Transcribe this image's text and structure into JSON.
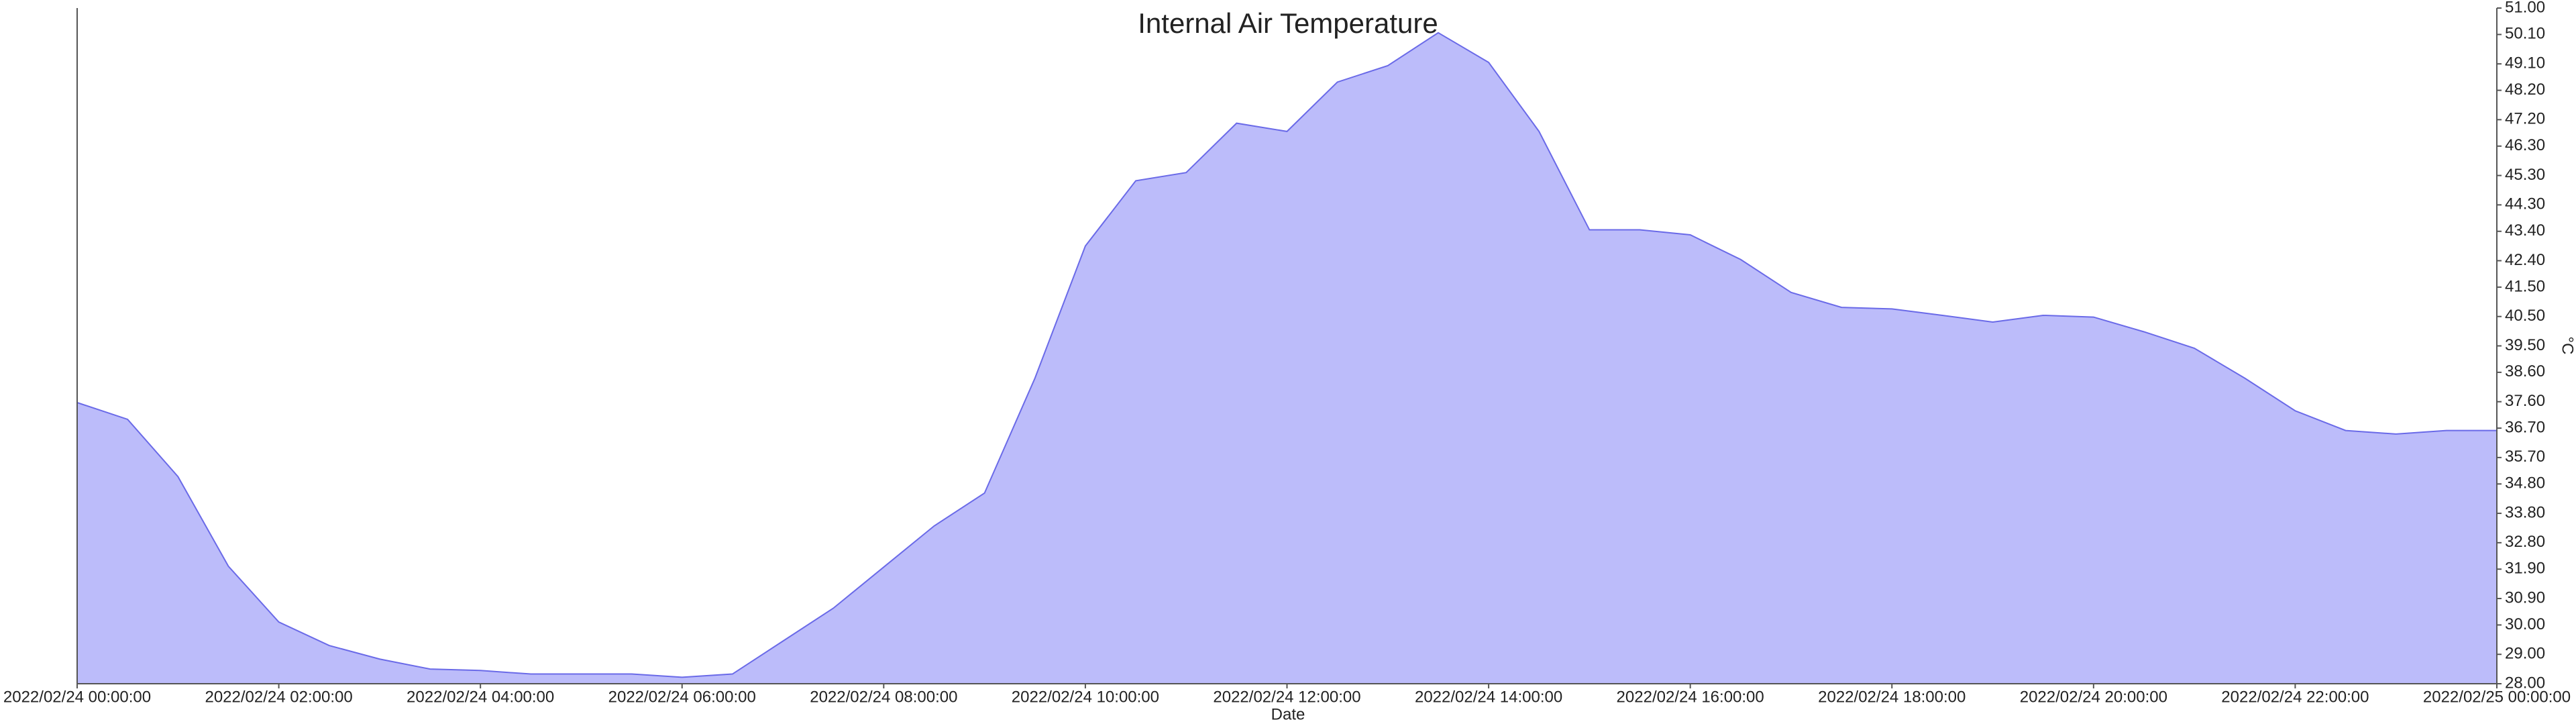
{
  "chart_data": {
    "type": "area",
    "title": "Internal Air Temperature",
    "x_label": "Date",
    "y_label": "°C",
    "x": [
      "2022/02/24 00:00:00",
      "2022/02/24 00:30:00",
      "2022/02/24 01:00:00",
      "2022/02/24 01:30:00",
      "2022/02/24 02:00:00",
      "2022/02/24 02:30:00",
      "2022/02/24 03:00:00",
      "2022/02/24 03:30:00",
      "2022/02/24 04:00:00",
      "2022/02/24 04:30:00",
      "2022/02/24 05:00:00",
      "2022/02/24 05:30:00",
      "2022/02/24 06:00:00",
      "2022/02/24 06:30:00",
      "2022/02/24 07:00:00",
      "2022/02/24 07:30:00",
      "2022/02/24 08:00:00",
      "2022/02/24 08:30:00",
      "2022/02/24 09:00:00",
      "2022/02/24 09:30:00",
      "2022/02/24 10:00:00",
      "2022/02/24 10:30:00",
      "2022/02/24 11:00:00",
      "2022/02/24 11:30:00",
      "2022/02/24 12:00:00",
      "2022/02/24 12:30:00",
      "2022/02/24 13:00:00",
      "2022/02/24 13:30:00",
      "2022/02/24 14:00:00",
      "2022/02/24 14:30:00",
      "2022/02/24 15:00:00",
      "2022/02/24 15:30:00",
      "2022/02/24 16:00:00",
      "2022/02/24 16:30:00",
      "2022/02/24 17:00:00",
      "2022/02/24 17:30:00",
      "2022/02/24 18:00:00",
      "2022/02/24 18:30:00",
      "2022/02/24 19:00:00",
      "2022/02/24 19:30:00",
      "2022/02/24 20:00:00",
      "2022/02/24 20:30:00",
      "2022/02/24 21:00:00",
      "2022/02/24 21:30:00",
      "2022/02/24 22:00:00",
      "2022/02/24 22:30:00",
      "2022/02/24 23:00:00",
      "2022/02/24 23:30:00",
      "2022/02/25 00:00:00"
    ],
    "values": [
      37.57,
      37.0,
      35.05,
      32.0,
      30.1,
      29.3,
      28.84,
      28.5,
      28.45,
      28.33,
      28.33,
      28.33,
      28.22,
      28.33,
      29.45,
      30.57,
      31.97,
      33.37,
      34.49,
      38.4,
      42.9,
      45.12,
      45.4,
      47.08,
      46.8,
      48.48,
      49.04,
      50.16,
      49.15,
      46.8,
      43.45,
      43.45,
      43.28,
      42.44,
      41.32,
      40.81,
      40.76,
      40.54,
      40.31,
      40.54,
      40.48,
      39.98,
      39.42,
      38.4,
      37.29,
      36.62,
      36.5,
      36.62,
      36.62
    ],
    "fill_color": "#bcbcfa",
    "line_color": "#6a6ae8",
    "xlim": [
      "2022/02/24 00:00:00",
      "2022/02/25 00:00:00"
    ],
    "xticks": [
      "2022/02/24 00:00:00",
      "2022/02/24 02:00:00",
      "2022/02/24 04:00:00",
      "2022/02/24 06:00:00",
      "2022/02/24 08:00:00",
      "2022/02/24 10:00:00",
      "2022/02/24 12:00:00",
      "2022/02/24 14:00:00",
      "2022/02/24 16:00:00",
      "2022/02/24 18:00:00",
      "2022/02/24 20:00:00",
      "2022/02/24 22:00:00",
      "2022/02/25 00:00:00"
    ],
    "ylim": [
      28,
      51
    ],
    "yticks": [
      {
        "value": 28,
        "label": "28.00"
      },
      {
        "value": 29,
        "label": "29.00"
      },
      {
        "value": 30,
        "label": "30.00"
      },
      {
        "value": 30.9,
        "label": "30.90"
      },
      {
        "value": 31.9,
        "label": "31.90"
      },
      {
        "value": 32.8,
        "label": "32.80"
      },
      {
        "value": 33.8,
        "label": "33.80"
      },
      {
        "value": 34.8,
        "label": "34.80"
      },
      {
        "value": 35.7,
        "label": "35.70"
      },
      {
        "value": 36.7,
        "label": "36.70"
      },
      {
        "value": 37.6,
        "label": "37.60"
      },
      {
        "value": 38.6,
        "label": "38.60"
      },
      {
        "value": 39.5,
        "label": "39.50"
      },
      {
        "value": 40.5,
        "label": "40.50"
      },
      {
        "value": 41.5,
        "label": "41.50"
      },
      {
        "value": 42.4,
        "label": "42.40"
      },
      {
        "value": 43.4,
        "label": "43.40"
      },
      {
        "value": 44.3,
        "label": "44.30"
      },
      {
        "value": 45.3,
        "label": "45.30"
      },
      {
        "value": 46.3,
        "label": "46.30"
      },
      {
        "value": 47.2,
        "label": "47.20"
      },
      {
        "value": 48.2,
        "label": "48.20"
      },
      {
        "value": 49.1,
        "label": "49.10"
      },
      {
        "value": 50.1,
        "label": "50.10"
      },
      {
        "value": 51,
        "label": "51.00"
      }
    ]
  }
}
